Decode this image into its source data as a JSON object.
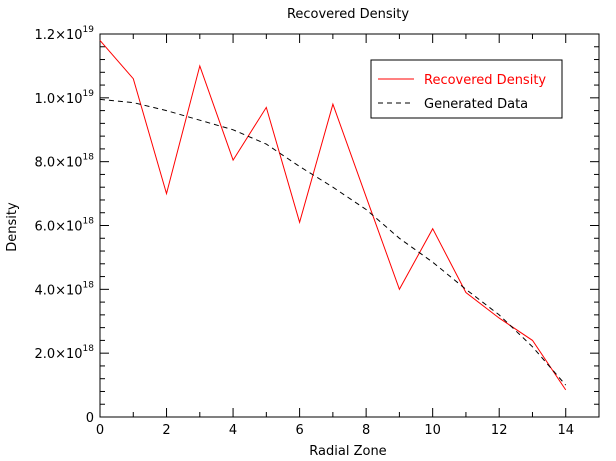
{
  "chart_data": {
    "type": "line",
    "title": "Recovered Density",
    "xlabel": "Radial Zone",
    "ylabel": "Density",
    "xlim": [
      0,
      15
    ],
    "ylim": [
      0,
      1.2e+19
    ],
    "grid": false,
    "legend_placement": "top-right",
    "x_ticks": [
      {
        "value": 0,
        "label": "0"
      },
      {
        "value": 2,
        "label": "2"
      },
      {
        "value": 4,
        "label": "4"
      },
      {
        "value": 6,
        "label": "6"
      },
      {
        "value": 8,
        "label": "8"
      },
      {
        "value": 10,
        "label": "10"
      },
      {
        "value": 12,
        "label": "12"
      },
      {
        "value": 14,
        "label": "14"
      }
    ],
    "y_ticks": [
      {
        "value": 0,
        "mantissa": "0",
        "exp": ""
      },
      {
        "value": 2e+18,
        "mantissa": "2.0×10",
        "exp": "18"
      },
      {
        "value": 4e+18,
        "mantissa": "4.0×10",
        "exp": "18"
      },
      {
        "value": 6e+18,
        "mantissa": "6.0×10",
        "exp": "18"
      },
      {
        "value": 8e+18,
        "mantissa": "8.0×10",
        "exp": "18"
      },
      {
        "value": 1e+19,
        "mantissa": "1.0×10",
        "exp": "19"
      },
      {
        "value": 1.2e+19,
        "mantissa": "1.2×10",
        "exp": "19"
      }
    ],
    "series": [
      {
        "name": "Recovered Density",
        "color": "#ff0000",
        "style": "solid",
        "x": [
          0,
          1,
          2,
          3,
          4,
          5,
          6,
          7,
          8,
          9,
          10,
          11,
          12,
          13,
          14
        ],
        "values": [
          1.18e+19,
          1.06e+19,
          7e+18,
          1.1e+19,
          8.05e+18,
          9.7e+18,
          6.1e+18,
          9.8e+18,
          6.9e+18,
          4e+18,
          5.9e+18,
          3.9e+18,
          3.1e+18,
          2.4e+18,
          8.5e+17
        ]
      },
      {
        "name": "Generated Data",
        "color": "#000000",
        "style": "dashed",
        "x": [
          0,
          1,
          2,
          3,
          4,
          5,
          6,
          7,
          8,
          9,
          10,
          11,
          12,
          13,
          14
        ],
        "values": [
          9.95e+18,
          9.85e+18,
          9.6e+18,
          9.3e+18,
          9e+18,
          8.55e+18,
          7.85e+18,
          7.2e+18,
          6.5e+18,
          5.6e+18,
          4.85e+18,
          4e+18,
          3.2e+18,
          2.2e+18,
          1e+18
        ]
      }
    ]
  }
}
